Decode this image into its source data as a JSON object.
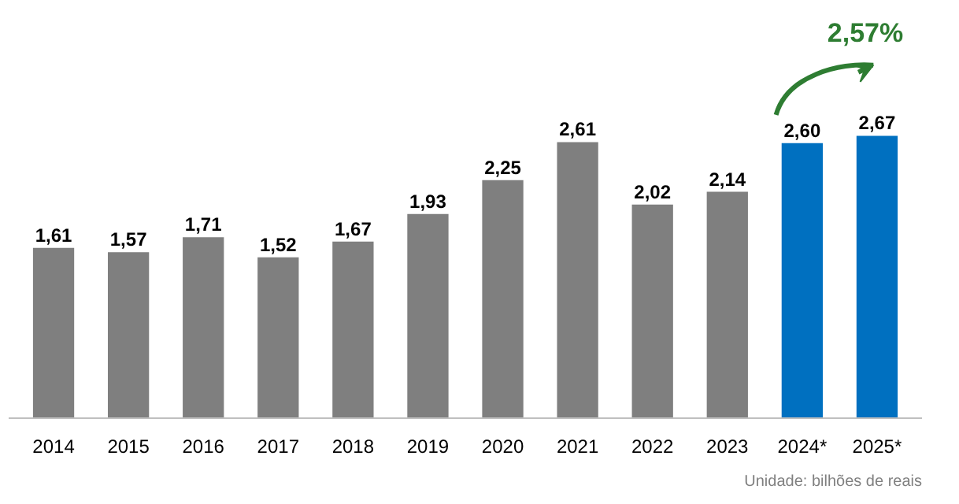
{
  "chart_data": {
    "type": "bar",
    "categories": [
      "2014",
      "2015",
      "2016",
      "2017",
      "2018",
      "2019",
      "2020",
      "2021",
      "2022",
      "2023",
      "2024*",
      "2025*"
    ],
    "values": [
      1.61,
      1.57,
      1.71,
      1.52,
      1.67,
      1.93,
      2.25,
      2.61,
      2.02,
      2.14,
      2.6,
      2.67
    ],
    "value_labels": [
      "1,61",
      "1,57",
      "1,71",
      "1,52",
      "1,67",
      "1,93",
      "2,25",
      "2,61",
      "2,02",
      "2,14",
      "2,60",
      "2,67"
    ],
    "colors": [
      "#7f7f7f",
      "#7f7f7f",
      "#7f7f7f",
      "#7f7f7f",
      "#7f7f7f",
      "#7f7f7f",
      "#7f7f7f",
      "#7f7f7f",
      "#7f7f7f",
      "#7f7f7f",
      "#0070c0",
      "#0070c0"
    ],
    "annotations": [
      "2,57%",
      "Unidade: bilhões de reais"
    ],
    "grid": false
  }
}
